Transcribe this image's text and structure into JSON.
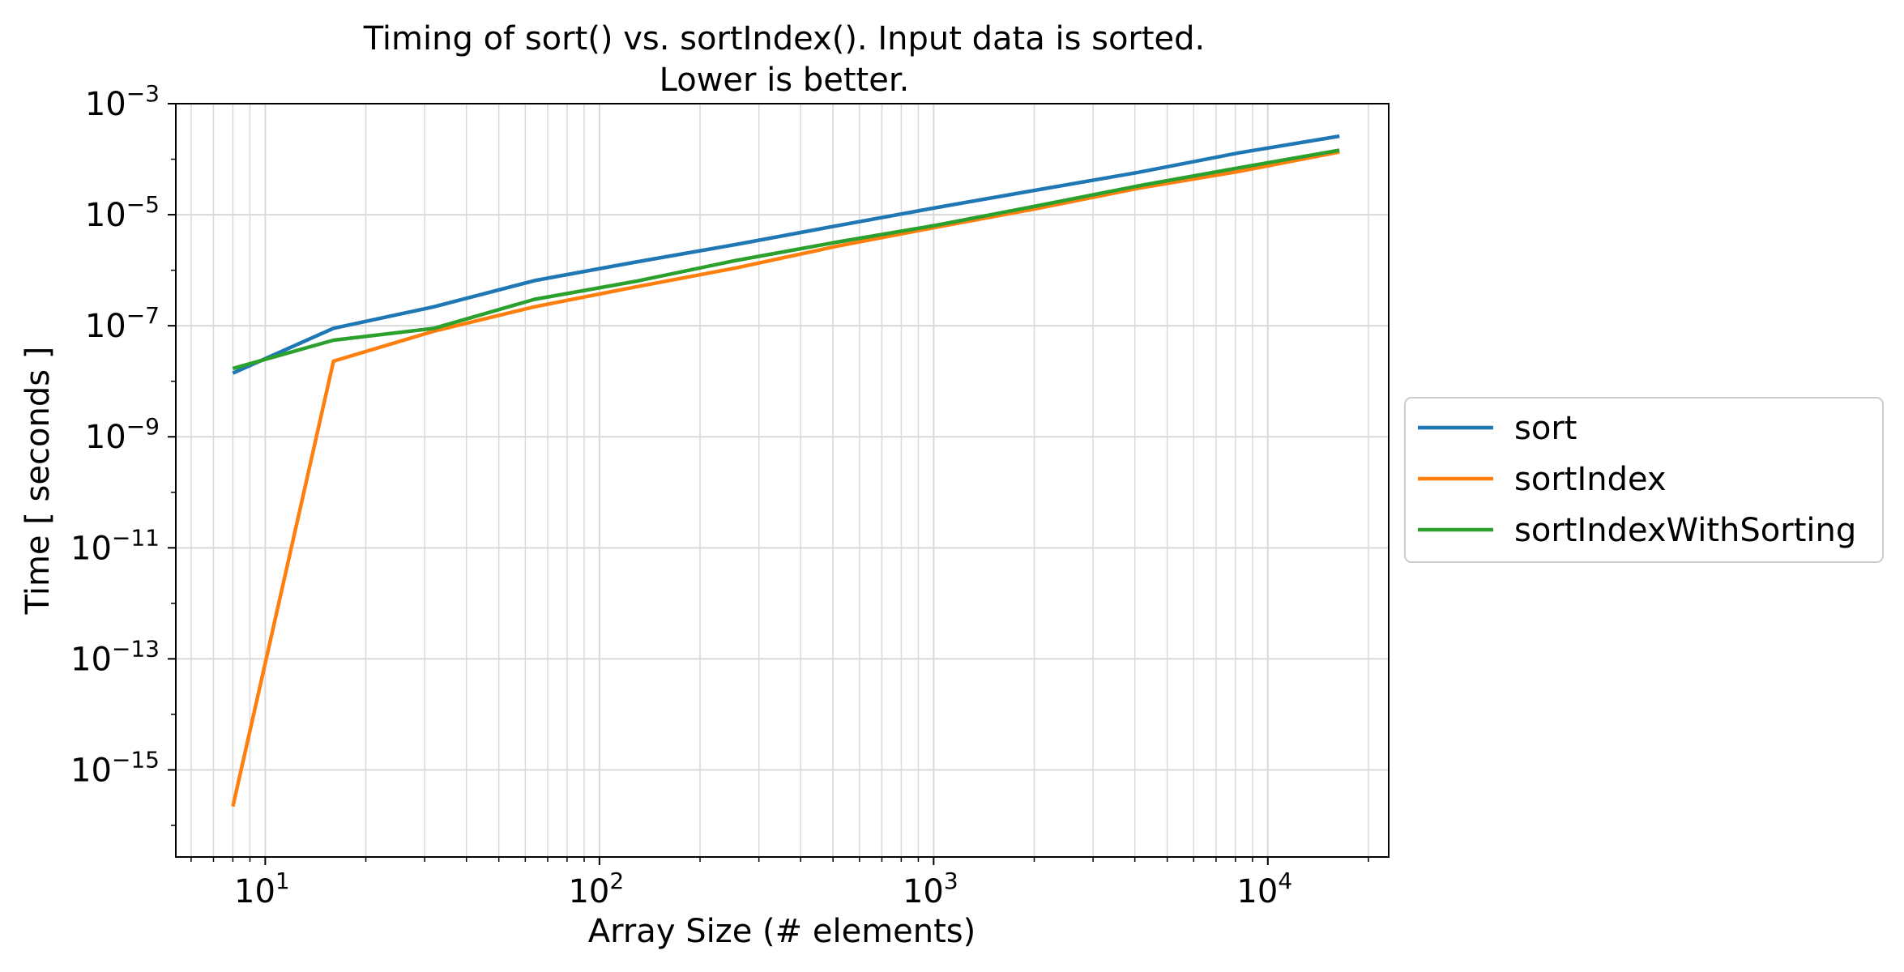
{
  "chart_data": {
    "type": "line",
    "title": "Timing of sort() vs. sortIndex(). Input data is sorted.",
    "subtitle": "Lower is better.",
    "xlabel": "Array Size (# elements)",
    "ylabel": "Time [ seconds ]",
    "xscale": "log",
    "yscale": "log",
    "xlim": [
      5.4,
      23000
    ],
    "ylim": [
      2.7e-17,
      0.001
    ],
    "grid": true,
    "legend_position": "outside-right",
    "x": [
      8,
      16,
      32,
      64,
      128,
      256,
      512,
      1024,
      2048,
      4096,
      8192,
      16384
    ],
    "series": [
      {
        "name": "sort",
        "color": "#1f77b4",
        "values": [
          1.4e-08,
          9e-08,
          2.2e-07,
          6.5e-07,
          1.4e-06,
          2.9e-06,
          6.3e-06,
          1.35e-05,
          2.8e-05,
          5.8e-05,
          0.00013,
          0.00026
        ]
      },
      {
        "name": "sortIndex",
        "color": "#ff7f0e",
        "values": [
          2.2e-16,
          2.3e-08,
          8e-08,
          2.2e-07,
          5e-07,
          1.1e-06,
          2.7e-06,
          6e-06,
          1.3e-05,
          3e-05,
          6e-05,
          0.000135
        ]
      },
      {
        "name": "sortIndexWithSorting",
        "color": "#2ca02c",
        "values": [
          1.7e-08,
          5.5e-08,
          9e-08,
          3e-07,
          6.3e-07,
          1.5e-06,
          3.2e-06,
          6.5e-06,
          1.45e-05,
          3.3e-05,
          7e-05,
          0.000145
        ]
      }
    ],
    "x_ticks": [
      {
        "base": "10",
        "exp": "1",
        "value": 10
      },
      {
        "base": "10",
        "exp": "2",
        "value": 100
      },
      {
        "base": "10",
        "exp": "3",
        "value": 1000
      },
      {
        "base": "10",
        "exp": "4",
        "value": 10000
      }
    ],
    "y_ticks": [
      {
        "base": "10",
        "exp": "−3",
        "value": 0.001
      },
      {
        "base": "10",
        "exp": "−5",
        "value": 1e-05
      },
      {
        "base": "10",
        "exp": "−7",
        "value": 1e-07
      },
      {
        "base": "10",
        "exp": "−9",
        "value": 1e-09
      },
      {
        "base": "10",
        "exp": "−11",
        "value": 1e-11
      },
      {
        "base": "10",
        "exp": "−13",
        "value": 1e-13
      },
      {
        "base": "10",
        "exp": "−15",
        "value": 1e-15
      }
    ]
  }
}
